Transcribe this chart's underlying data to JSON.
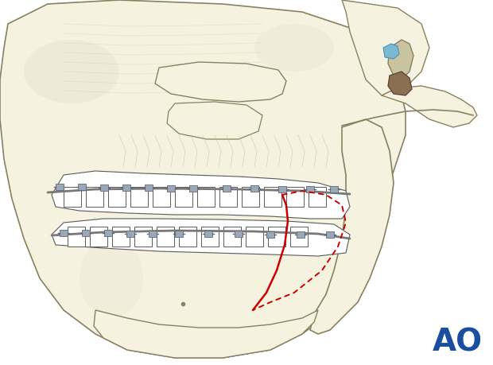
{
  "background_color": "#ffffff",
  "figure_width": 6.2,
  "figure_height": 4.59,
  "dpi": 100,
  "ao_text": "AO",
  "ao_color": "#1a4fa0",
  "ao_fontsize": 28,
  "skull_outline": "#8a8060",
  "bone_fill": "#e8e4cc",
  "bone_light": "#f5f2e0",
  "bone_shadow": "#c8c4a0",
  "red_line_color": "#cc0000",
  "red_dot_color": "#cc0000",
  "blue_highlight": "#7ab8d4",
  "dark_gray": "#5a5a5a",
  "bracket_color": "#9aa8b8",
  "wire_color": "#787878"
}
